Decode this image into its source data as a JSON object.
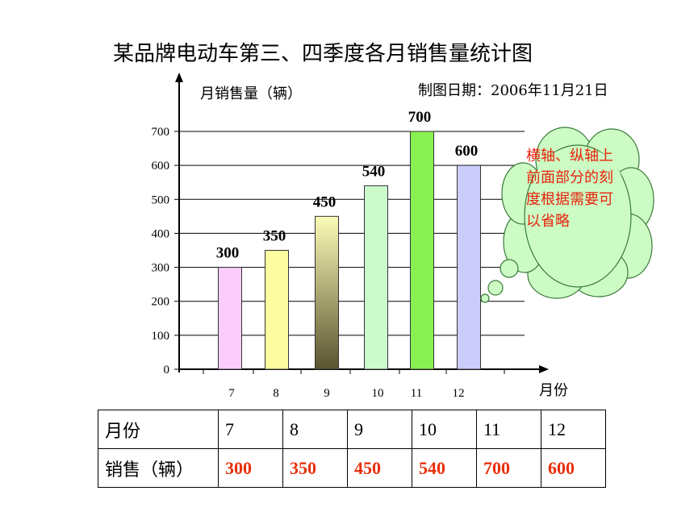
{
  "chart_data": {
    "type": "bar",
    "title": "某品牌电动车第三、四季度各月销售量统计图",
    "ylabel": "月销售量（辆）",
    "xlabel": "月份",
    "date_note": "制图日期：2006年11月21日",
    "categories": [
      "7",
      "8",
      "9",
      "10",
      "11",
      "12"
    ],
    "values": [
      300,
      350,
      450,
      540,
      700,
      600
    ],
    "data_labels": [
      "300",
      "350",
      "450",
      "540",
      "700",
      "600"
    ],
    "yticks": [
      "0",
      "100",
      "200",
      "300",
      "400",
      "500",
      "600",
      "700"
    ],
    "ylim": [
      0,
      700
    ],
    "bar_colors": [
      "#fccdfc",
      "#fcfca0",
      "#9a9060",
      "#ccfccc",
      "#88f050",
      "#ccccfc"
    ],
    "grid": true
  },
  "callout": {
    "text": "横轴、纵轴上前面部分的刻度根据需要可以省略",
    "text_color": "#e8220c",
    "fill_color": "#ccfcc4"
  },
  "table": {
    "row1_header": "月份",
    "row2_header": "销售（辆）",
    "months": [
      "7",
      "8",
      "9",
      "10",
      "11",
      "12"
    ],
    "sales": [
      "300",
      "350",
      "450",
      "540",
      "700",
      "600"
    ]
  }
}
